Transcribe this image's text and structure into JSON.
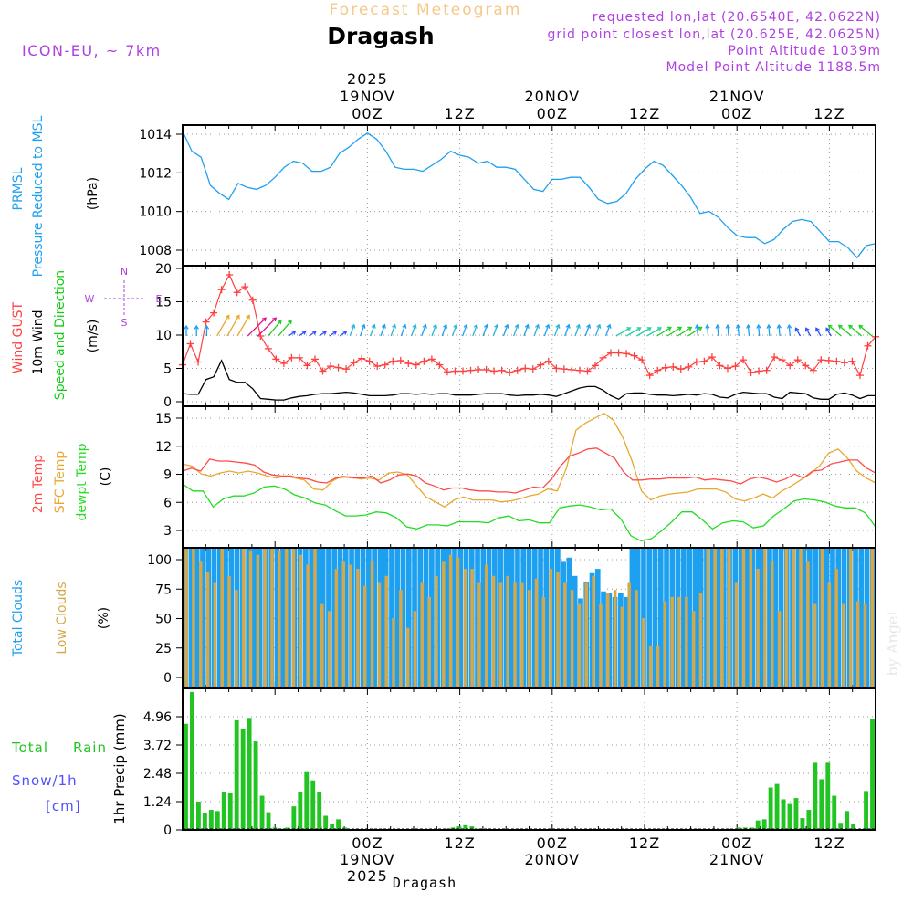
{
  "header": {
    "subtitle": "Forecast Meteogram",
    "title": "Dragash",
    "model": "ICON-EU, ~ 7km",
    "requested": "requested lon,lat (20.6540E, 42.0622N)",
    "grid_point": "grid point closest lon,lat (20.625E, 42.0625N)",
    "point_altitude": "Point Altitude 1039m",
    "model_altitude": "Model Point Altitude 1188.5m",
    "watermark": "by Angel",
    "footer_location": "Dragash"
  },
  "time_axis": {
    "top_labels": [
      {
        "h": 24,
        "lines": [
          "2025",
          "19NOV",
          "00Z"
        ]
      },
      {
        "h": 36,
        "lines": [
          "12Z"
        ]
      },
      {
        "h": 48,
        "lines": [
          "20NOV",
          "00Z"
        ]
      },
      {
        "h": 60,
        "lines": [
          "12Z"
        ]
      },
      {
        "h": 72,
        "lines": [
          "21NOV",
          "00Z"
        ]
      },
      {
        "h": 84,
        "lines": [
          "12Z"
        ]
      }
    ],
    "bottom_labels": [
      {
        "h": 24,
        "lines": [
          "00Z",
          "19NOV",
          "2025"
        ]
      },
      {
        "h": 36,
        "lines": [
          "12Z"
        ]
      },
      {
        "h": 48,
        "lines": [
          "00Z",
          "20NOV"
        ]
      },
      {
        "h": 60,
        "lines": [
          "12Z"
        ]
      },
      {
        "h": 72,
        "lines": [
          "00Z",
          "21NOV"
        ]
      },
      {
        "h": 84,
        "lines": [
          "12Z"
        ]
      }
    ]
  },
  "colors": {
    "pressure": "#1ea0f0",
    "gust": "#ff4040",
    "wind": "#000000",
    "windlabel": "#11cc11",
    "temp2m": "#ff4a4a",
    "sfc": "#e8a830",
    "dew": "#22dd22",
    "total_clouds": "#1ea0f0",
    "low_clouds": "#d4a84a",
    "rain": "#22c422",
    "snow": "#5050ff",
    "meta": "#b040e0",
    "subtitle": "#f5c98a"
  },
  "panels": {
    "pressure": {
      "labels": [
        "PRMSL",
        "Pressure Reduced to MSL",
        "(hPa)"
      ]
    },
    "wind": {
      "labels": [
        "Wind GUST",
        "10m Wind",
        "Speed and Direction",
        "(m/s)"
      ],
      "compass": [
        "N",
        "W",
        "E",
        "S"
      ]
    },
    "temp": {
      "labels": [
        "2m Temp",
        "SFC Temp",
        "dewpt Temp",
        "(C)"
      ]
    },
    "clouds": {
      "labels": [
        "Total Clouds",
        "Low Clouds",
        "(%)"
      ]
    },
    "precip": {
      "labels": [
        "Total",
        "Rain",
        "Snow/1h",
        "[cm]",
        "1hr Precip (mm)"
      ]
    }
  },
  "chart_data": [
    {
      "type": "line",
      "title": "PRMSL Pressure Reduced to MSL",
      "ylabel": "(hPa)",
      "ylim": [
        1007.3,
        1014.3
      ],
      "yticks": [
        "1014",
        "1012",
        "1010",
        "1008"
      ],
      "x_hours": [
        0,
        1,
        2,
        3,
        4,
        5,
        6,
        7,
        8,
        9,
        10,
        11,
        12,
        13,
        14,
        15,
        16,
        17,
        18,
        19,
        20,
        21,
        22,
        23,
        24,
        25,
        26,
        27,
        28,
        29,
        30,
        31,
        32,
        33,
        34,
        35,
        36,
        37,
        38,
        39,
        40,
        41,
        42,
        43,
        44,
        45,
        46,
        47,
        48,
        49,
        50,
        51,
        52,
        53,
        54,
        55,
        56,
        57,
        58,
        59,
        60,
        61,
        62,
        63,
        64,
        65,
        66,
        67,
        68,
        69,
        70,
        71,
        72,
        73,
        74,
        75,
        76,
        77,
        78,
        79,
        80,
        81,
        82,
        83,
        84,
        85,
        86,
        87,
        88,
        89,
        90
      ],
      "series": [
        {
          "name": "PRMSL",
          "values": [
            1014.0,
            1013.0,
            1012.7,
            1011.3,
            1010.9,
            1010.6,
            1011.4,
            1011.2,
            1011.1,
            1011.3,
            1011.7,
            1012.2,
            1012.5,
            1012.4,
            1012.0,
            1012.0,
            1012.2,
            1012.9,
            1013.2,
            1013.6,
            1013.9,
            1013.6,
            1013.0,
            1012.2,
            1012.1,
            1012.1,
            1012.0,
            1012.3,
            1012.6,
            1013.0,
            1012.8,
            1012.7,
            1012.4,
            1012.5,
            1012.2,
            1012.2,
            1012.1,
            1011.6,
            1011.1,
            1011.0,
            1011.6,
            1011.6,
            1011.7,
            1011.7,
            1011.2,
            1010.6,
            1010.4,
            1010.5,
            1010.9,
            1011.6,
            1012.1,
            1012.5,
            1012.3,
            1011.8,
            1011.3,
            1010.7,
            1009.9,
            1010.0,
            1009.7,
            1009.2,
            1008.8,
            1008.7,
            1008.7,
            1008.4,
            1008.6,
            1009.1,
            1009.5,
            1009.6,
            1009.5,
            1009.0,
            1008.5,
            1008.5,
            1008.2,
            1007.7,
            1008.3,
            1008.4
          ]
        }
      ]
    },
    {
      "type": "line",
      "title": "Wind GUST / 10m Wind Speed and Direction",
      "ylabel": "(m/s)",
      "ylim": [
        0,
        20
      ],
      "yticks": [
        "20",
        "15",
        "10",
        "5",
        "0"
      ],
      "series": [
        {
          "name": "Wind GUST",
          "values": [
            5.9,
            8.9,
            6.3,
            12.0,
            13.3,
            16.6,
            18.7,
            16.2,
            17.0,
            15.1,
            10.0,
            8.2,
            6.7,
            6.1,
            6.9,
            6.9,
            5.8,
            6.7,
            5.0,
            5.7,
            5.5,
            5.3,
            6.2,
            6.8,
            6.4,
            5.7,
            5.9,
            6.4,
            6.5,
            6.1,
            5.9,
            6.4,
            6.7,
            5.9,
            4.9,
            5.0,
            5.0,
            5.1,
            5.2,
            5.2,
            5.0,
            5.1,
            4.8,
            5.1,
            5.4,
            5.3,
            5.9,
            6.4,
            5.4,
            5.3,
            5.2,
            5.1,
            5.0,
            5.8,
            6.9,
            7.6,
            7.6,
            7.5,
            7.2,
            6.6,
            4.4,
            5.1,
            5.5,
            5.6,
            5.3,
            5.6,
            6.3,
            6.4,
            7.0,
            5.8,
            5.4,
            5.7,
            6.6,
            4.8,
            5.0,
            5.1,
            7.0,
            6.6,
            5.8,
            6.6,
            5.8,
            5.1,
            6.6,
            6.5,
            6.4,
            6.2,
            6.4,
            4.4,
            8.6,
            9.9
          ]
        },
        {
          "name": "10m Wind",
          "values": [
            1.8,
            1.7,
            1.7,
            3.8,
            4.2,
            6.5,
            3.8,
            3.4,
            3.4,
            2.5,
            1.1,
            1.0,
            0.9,
            0.9,
            1.2,
            1.4,
            1.5,
            1.7,
            1.8,
            1.8,
            1.9,
            2.0,
            1.9,
            1.7,
            1.5,
            1.5,
            1.5,
            1.6,
            1.8,
            1.8,
            1.7,
            1.8,
            1.7,
            1.8,
            1.8,
            1.6,
            1.6,
            1.6,
            1.7,
            1.8,
            1.8,
            1.8,
            1.6,
            1.5,
            1.6,
            1.6,
            1.7,
            1.6,
            1.4,
            1.8,
            2.2,
            2.6,
            2.8,
            2.8,
            2.3,
            1.5,
            1.0,
            1.8,
            1.9,
            1.9,
            1.7,
            1.6,
            1.6,
            1.5,
            1.6,
            1.7,
            1.6,
            1.8,
            1.7,
            1.3,
            1.2,
            1.7,
            2.0,
            1.9,
            1.8,
            1.8,
            1.3,
            1.1,
            2.0,
            1.9,
            1.8,
            1.2,
            1.0,
            1.0,
            1.7,
            1.9,
            1.6,
            1.1,
            1.5,
            1.5
          ]
        }
      ]
    },
    {
      "type": "line",
      "title": "2m Temp / SFC Temp / dewpt Temp",
      "ylabel": "(C)",
      "ylim": [
        1.6,
        15.8
      ],
      "yticks": [
        "15",
        "12",
        "9",
        "6",
        "3"
      ],
      "series": [
        {
          "name": "2m Temp",
          "values": [
            9.3,
            9.6,
            9.3,
            10.5,
            10.3,
            10.3,
            10.2,
            10.1,
            9.9,
            9.2,
            8.9,
            8.8,
            8.8,
            8.6,
            8.5,
            8.2,
            8.1,
            8.6,
            8.7,
            8.6,
            8.6,
            8.8,
            8.1,
            8.4,
            8.9,
            9.0,
            8.8,
            8.1,
            7.8,
            7.4,
            7.6,
            7.6,
            7.4,
            7.3,
            7.3,
            7.2,
            7.2,
            7.1,
            7.4,
            7.7,
            7.6,
            8.5,
            9.8,
            10.8,
            11.1,
            11.5,
            11.6,
            11.1,
            10.6,
            9.2,
            8.4,
            8.4,
            8.5,
            8.5,
            8.6,
            8.6,
            8.6,
            8.7,
            8.4,
            8.5,
            8.4,
            8.3,
            8.0,
            8.5,
            8.7,
            8.5,
            8.2,
            8.5,
            9.0,
            8.6,
            9.3,
            9.4,
            10.0,
            10.2,
            10.4,
            10.4,
            9.6,
            9.1
          ]
        },
        {
          "name": "SFC Temp",
          "values": [
            10.0,
            9.8,
            9.0,
            8.8,
            9.1,
            9.3,
            9.1,
            9.3,
            9.1,
            8.8,
            8.6,
            8.8,
            8.6,
            8.4,
            7.5,
            7.4,
            8.3,
            8.8,
            8.7,
            8.5,
            8.6,
            8.4,
            9.1,
            9.2,
            8.9,
            7.8,
            6.7,
            6.2,
            5.7,
            6.4,
            6.7,
            6.4,
            6.4,
            6.4,
            6.2,
            6.3,
            6.5,
            6.8,
            7.0,
            7.5,
            7.3,
            9.6,
            13.4,
            14.1,
            14.6,
            15.1,
            14.4,
            12.7,
            10.3,
            7.3,
            6.4,
            6.8,
            7.0,
            7.1,
            7.2,
            7.5,
            7.5,
            7.5,
            7.2,
            6.5,
            6.3,
            6.6,
            7.0,
            6.6,
            7.3,
            7.8,
            8.4,
            9.0,
            9.8,
            11.1,
            11.5,
            10.6,
            9.3,
            8.6,
            8.1
          ]
        },
        {
          "name": "dewpt Temp",
          "values": [
            8.0,
            7.3,
            7.3,
            5.7,
            6.5,
            6.8,
            6.8,
            7.1,
            7.7,
            7.8,
            7.5,
            6.9,
            6.6,
            6.1,
            5.9,
            5.3,
            4.8,
            4.8,
            4.9,
            5.2,
            5.1,
            4.6,
            3.7,
            3.5,
            3.9,
            3.9,
            3.8,
            4.2,
            4.2,
            4.2,
            4.1,
            4.6,
            4.8,
            4.3,
            4.4,
            4.1,
            4.1,
            5.6,
            5.8,
            5.9,
            5.7,
            5.4,
            5.5,
            4.5,
            2.8,
            2.3,
            2.5,
            3.3,
            4.2,
            5.2,
            5.2,
            4.4,
            3.5,
            4.1,
            4.3,
            4.2,
            3.6,
            3.8,
            4.8,
            5.5,
            6.3,
            6.5,
            6.4,
            6.2,
            5.8,
            5.6,
            5.6,
            5.1,
            3.7
          ]
        }
      ]
    },
    {
      "type": "bar",
      "title": "Total Clouds / Low Clouds",
      "ylabel": "(%)",
      "ylim": [
        0,
        100
      ],
      "yticks": [
        "100",
        "75",
        "50",
        "25",
        "0"
      ],
      "series": [
        {
          "name": "Total Clouds",
          "values": [
            100,
            100,
            100,
            100,
            100,
            100,
            100,
            100,
            100,
            100,
            100,
            100,
            100,
            100,
            100,
            100,
            100,
            100,
            100,
            100,
            100,
            100,
            100,
            100,
            100,
            100,
            100,
            100,
            100,
            100,
            100,
            100,
            100,
            100,
            100,
            100,
            100,
            100,
            100,
            100,
            100,
            100,
            100,
            100,
            100,
            100,
            100,
            100,
            100,
            100,
            100,
            100,
            100,
            100,
            100,
            100,
            100,
            100,
            100,
            100,
            100,
            100,
            100,
            100,
            100,
            100,
            90,
            93,
            80,
            64,
            76,
            82,
            85,
            69,
            68,
            65,
            68,
            65,
            100,
            100,
            100,
            100,
            100,
            100,
            100,
            100,
            100,
            100,
            100,
            100,
            100,
            100,
            100,
            100,
            100,
            100,
            100,
            100,
            100,
            100,
            100,
            100,
            100,
            100,
            100,
            100,
            100,
            100,
            100,
            100,
            100,
            100,
            100,
            100,
            100,
            100,
            100,
            100,
            100,
            100,
            100
          ]
        },
        {
          "name": "Low Clouds",
          "values": [
            100,
            100,
            90,
            83,
            75,
            100,
            80,
            70,
            100,
            98,
            95,
            100,
            100,
            98,
            100,
            100,
            95,
            88,
            100,
            60,
            55,
            85,
            90,
            88,
            85,
            73,
            90,
            75,
            80,
            50,
            70,
            43,
            55,
            75,
            65,
            80,
            90,
            95,
            93,
            85,
            85,
            75,
            88,
            80,
            75,
            80,
            75,
            75,
            70,
            78,
            65,
            85,
            83,
            75,
            70,
            60,
            75,
            80,
            60,
            68,
            70,
            58,
            75,
            70,
            50,
            30,
            30,
            62,
            65,
            65,
            65,
            55,
            68,
            100,
            100,
            100,
            100,
            75,
            100,
            100,
            85,
            100,
            90,
            55,
            100,
            100,
            100,
            90,
            60,
            100,
            75,
            85,
            60,
            100,
            62,
            60,
            100
          ]
        }
      ]
    },
    {
      "type": "bar",
      "title": "Total Rain / Snow 1h",
      "ylabel": "1hr Precip (mm)",
      "ylim": [
        0,
        6.0
      ],
      "yticks": [
        "4.96",
        "3.72",
        "2.48",
        "1.24",
        "0"
      ],
      "series": [
        {
          "name": "Total Rain",
          "values": [
            4.5,
            5.85,
            1.2,
            0.7,
            0.85,
            0.8,
            1.6,
            1.55,
            4.65,
            4.3,
            4.75,
            3.75,
            1.45,
            0.75,
            0.1,
            0.05,
            0.1,
            1.0,
            1.6,
            2.45,
            2.1,
            1.6,
            0.6,
            0.25,
            0.45,
            0.1,
            0,
            0,
            0,
            0,
            0,
            0,
            0,
            0,
            0,
            0,
            0,
            0,
            0,
            0,
            0,
            0.05,
            0.1,
            0.15,
            0.2,
            0.15,
            0.05,
            0,
            0,
            0,
            0,
            0,
            0,
            0,
            0,
            0,
            0,
            0,
            0,
            0,
            0,
            0,
            0,
            0,
            0,
            0,
            0,
            0,
            0,
            0,
            0,
            0,
            0,
            0,
            0,
            0,
            0,
            0,
            0,
            0,
            0,
            0,
            0,
            0,
            0,
            0,
            0,
            0.1,
            0.1,
            0.1,
            0.4,
            0.45,
            1.8,
            1.95,
            1.3,
            1.1,
            1.35,
            0.5,
            0.85,
            2.85,
            2.15,
            2.85,
            1.45,
            0.3,
            0.8,
            0.25,
            0,
            1.65,
            4.7
          ]
        },
        {
          "name": "Snow/1h",
          "values": []
        }
      ]
    }
  ]
}
